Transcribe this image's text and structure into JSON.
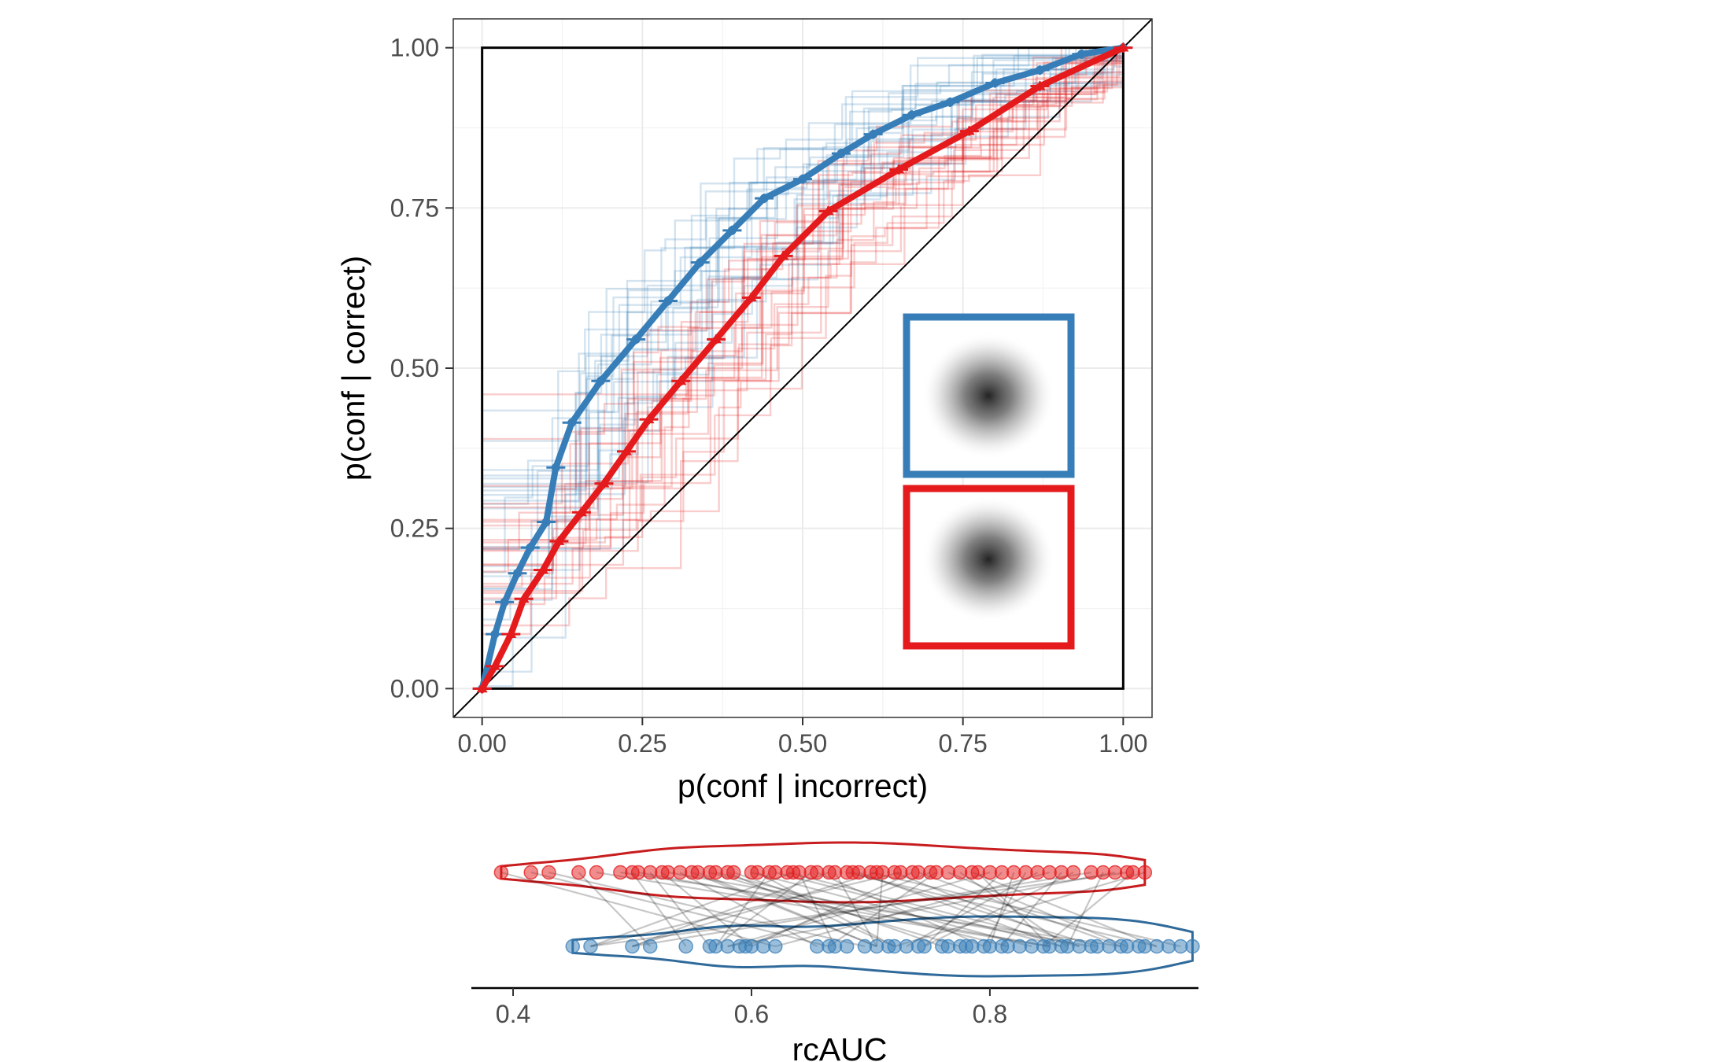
{
  "chart_data": [
    {
      "type": "line",
      "xlabel": "p(conf | incorrect)",
      "ylabel": "p(conf | correct)",
      "xlim": [
        -0.045,
        1.045
      ],
      "ylim": [
        -0.045,
        1.045
      ],
      "x_ticks": [
        "0.00",
        "0.25",
        "0.50",
        "0.75",
        "1.00"
      ],
      "y_ticks": [
        "0.00",
        "0.25",
        "0.50",
        "0.75",
        "1.00"
      ],
      "grid": true,
      "reference_line": "diagonal y = x",
      "series": [
        {
          "color": "#377eb8",
          "marker": "circle",
          "x": [
            0,
            0.02,
            0.035,
            0.055,
            0.075,
            0.1,
            0.115,
            0.14,
            0.185,
            0.24,
            0.29,
            0.34,
            0.39,
            0.44,
            0.5,
            0.56,
            0.61,
            0.67,
            0.73,
            0.8,
            0.87,
            0.935,
            1.0
          ],
          "y": [
            0,
            0.085,
            0.135,
            0.18,
            0.22,
            0.26,
            0.345,
            0.415,
            0.48,
            0.545,
            0.605,
            0.665,
            0.715,
            0.765,
            0.795,
            0.835,
            0.865,
            0.895,
            0.915,
            0.945,
            0.965,
            0.99,
            1.0
          ]
        },
        {
          "color": "#e41a1c",
          "marker": "triangle",
          "x": [
            0,
            0.02,
            0.045,
            0.065,
            0.095,
            0.12,
            0.155,
            0.19,
            0.225,
            0.26,
            0.31,
            0.365,
            0.42,
            0.47,
            0.54,
            0.65,
            0.76,
            0.87,
            1.0
          ],
          "y": [
            0,
            0.035,
            0.085,
            0.14,
            0.185,
            0.23,
            0.275,
            0.32,
            0.37,
            0.42,
            0.48,
            0.545,
            0.61,
            0.675,
            0.745,
            0.81,
            0.87,
            0.94,
            1.0
          ]
        }
      ]
    },
    {
      "type": "scatter",
      "xlabel": "rcAUC",
      "x_ticks": [
        "0.4",
        "0.6",
        "0.8"
      ],
      "xlim": [
        0.365,
        0.975
      ],
      "series": [
        {
          "color": "#e41a1c",
          "values": [
            0.39,
            0.415,
            0.43,
            0.455,
            0.47,
            0.49,
            0.5,
            0.505,
            0.515,
            0.525,
            0.53,
            0.54,
            0.55,
            0.555,
            0.565,
            0.57,
            0.58,
            0.585,
            0.6,
            0.605,
            0.615,
            0.62,
            0.63,
            0.635,
            0.64,
            0.65,
            0.655,
            0.665,
            0.67,
            0.68,
            0.685,
            0.69,
            0.7,
            0.705,
            0.71,
            0.72,
            0.725,
            0.735,
            0.74,
            0.75,
            0.755,
            0.765,
            0.775,
            0.785,
            0.79,
            0.8,
            0.81,
            0.82,
            0.83,
            0.84,
            0.85,
            0.86,
            0.87,
            0.885,
            0.895,
            0.905,
            0.915,
            0.92,
            0.93
          ]
        },
        {
          "color": "#377eb8",
          "values": [
            0.45,
            0.465,
            0.5,
            0.515,
            0.545,
            0.565,
            0.57,
            0.58,
            0.59,
            0.595,
            0.6,
            0.61,
            0.62,
            0.655,
            0.665,
            0.67,
            0.68,
            0.695,
            0.705,
            0.715,
            0.72,
            0.73,
            0.74,
            0.745,
            0.76,
            0.765,
            0.775,
            0.78,
            0.785,
            0.795,
            0.8,
            0.81,
            0.815,
            0.825,
            0.835,
            0.845,
            0.85,
            0.86,
            0.865,
            0.875,
            0.885,
            0.89,
            0.9,
            0.91,
            0.915,
            0.925,
            0.93,
            0.94,
            0.95,
            0.96,
            0.97
          ]
        }
      ]
    }
  ]
}
